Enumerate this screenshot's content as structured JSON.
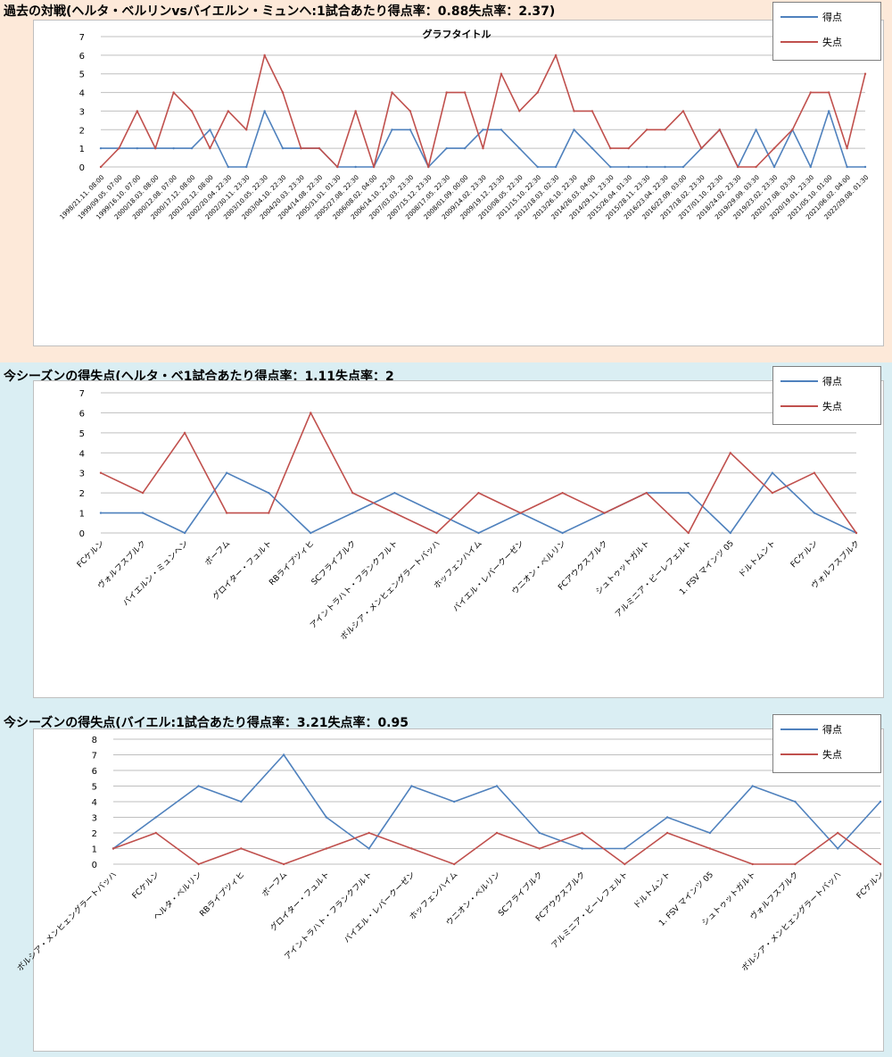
{
  "colors": {
    "scored": "#4f81bd",
    "conceded": "#c0504d",
    "grid": "#bfbfbf",
    "panel_top": "#fde9d9",
    "panel_bottom": "#daeef3"
  },
  "charts": [
    {
      "header": "過去の対戦(ヘルタ・ベルリンvsバイエルン・ミュンヘ:1試合あたり得点率：0.88失点率：2.37)",
      "title": "グラフタイトル"
    },
    {
      "header": "今シーズンの得失点(ヘルタ・ベ1試合あたり得点率：1.11失点率：2",
      "title": ""
    },
    {
      "header": "今シーズンの得失点(バイエル:1試合あたり得点率：3.21失点率：0.95",
      "title": ""
    }
  ],
  "chart_data": [
    {
      "type": "line",
      "title": "グラフタイトル",
      "legend_position": "top-right",
      "grid": true,
      "ylim": [
        0,
        7
      ],
      "categories": [
        "1998/21.11. 08:00",
        "1999/09.05. 07:00",
        "1999/16.10. 07:00",
        "2000/18.03. 08:00",
        "2000/12.08. 07:00",
        "2000/17.12. 08:00",
        "2001/02.12. 08:00",
        "2002/20.04. 22:30",
        "2002/30.11. 23:30",
        "2003/10.05. 22:30",
        "2003/04.10. 22:30",
        "2004/20.03. 23:30",
        "2004/14.08. 22:30",
        "2005/31.01. 01:30",
        "2005/27.08. 22:30",
        "2006/08.02. 04:00",
        "2006/14.10. 22:30",
        "2007/03.03. 23:30",
        "2007/15.12. 23:30",
        "2008/17.05. 22:30",
        "2008/01.09. 00:00",
        "2009/14.02. 23:30",
        "2009/19.12. 23:30",
        "2010/08.05. 22:30",
        "2011/15.10. 22:30",
        "2012/18.03. 02:30",
        "2013/26.10. 22:30",
        "2014/26.03. 04:00",
        "2014/29.11. 23:30",
        "2015/26.04. 01:30",
        "2015/28.11. 23:30",
        "2016/23.04. 22:30",
        "2016/22.09. 03:00",
        "2017/18.02. 23:30",
        "2017/01.10. 22:30",
        "2018/24.02. 23:30",
        "2019/29.09. 03:30",
        "2019/23.02. 23:30",
        "2020/17.08. 03:30",
        "2020/19.01. 23:30",
        "2021/05.10. 01:00",
        "2021/06.02. 04:00",
        "2022/29.08. 01:30"
      ],
      "series": [
        {
          "name": "得点",
          "values": [
            1,
            1,
            1,
            1,
            1,
            1,
            2,
            0,
            0,
            3,
            1,
            1,
            1,
            0,
            0,
            0,
            2,
            2,
            0,
            1,
            1,
            2,
            2,
            1,
            0,
            0,
            2,
            1,
            0,
            0,
            0,
            0,
            0,
            1,
            2,
            0,
            2,
            0,
            2,
            0,
            3,
            0,
            0
          ]
        },
        {
          "name": "失点",
          "values": [
            0,
            1,
            3,
            1,
            4,
            3,
            1,
            3,
            2,
            6,
            4,
            1,
            1,
            0,
            3,
            0,
            4,
            3,
            0,
            4,
            4,
            1,
            5,
            3,
            4,
            6,
            3,
            3,
            1,
            1,
            2,
            2,
            3,
            1,
            2,
            0,
            0,
            1,
            2,
            4,
            4,
            1,
            5
          ]
        }
      ]
    },
    {
      "type": "line",
      "legend_position": "top-right",
      "grid": true,
      "ylim": [
        0,
        7
      ],
      "categories": [
        "FCケルン",
        "ヴォルフスブルク",
        "バイエルン・ミュンヘン",
        "ボーフム",
        "グロイター・フュルト",
        "RBライプツィヒ",
        "SCフライブルク",
        "アイントラハト・フランクフルト",
        "ボルシア・メンヒェングラートバッハ",
        "ホッフェンハイム",
        "バイエル・レバークーゼン",
        "ウニオン・ベルリン",
        "FCアウクスブルク",
        "シュトゥットガルト",
        "アルミニア・ビーレフェルト",
        "1. FSV マインツ 05",
        "ドルトムント",
        "FCケルン",
        "ヴォルフスブルク"
      ],
      "series": [
        {
          "name": "得点",
          "values": [
            1,
            1,
            0,
            3,
            2,
            0,
            1,
            2,
            1,
            0,
            1,
            0,
            1,
            2,
            2,
            0,
            3,
            1,
            0
          ]
        },
        {
          "name": "失点",
          "values": [
            3,
            2,
            5,
            1,
            1,
            6,
            2,
            1,
            0,
            2,
            1,
            2,
            1,
            2,
            0,
            4,
            2,
            3,
            0
          ]
        }
      ]
    },
    {
      "type": "line",
      "legend_position": "top-right",
      "grid": true,
      "ylim": [
        0,
        8
      ],
      "categories": [
        "ボルシア・メンヒェングラートバッハ",
        "FCケルン",
        "ヘルタ・ベルリン",
        "RBライプツィヒ",
        "ボーフム",
        "グロイター・フュルト",
        "アイントラハト・フランクフルト",
        "バイエル・レバークーゼン",
        "ホッフェンハイム",
        "ウニオン・ベルリン",
        "SCフライブルク",
        "FCアウクスブルク",
        "アルミニア・ビーレフェルト",
        "ドルトムント",
        "1. FSV マインツ 05",
        "シュトゥットガルト",
        "ヴォルフスブルク",
        "ボルシア・メンヒェングラートバッハ",
        "FCケルン"
      ],
      "series": [
        {
          "name": "得点",
          "values": [
            1,
            3,
            5,
            4,
            7,
            3,
            1,
            5,
            4,
            5,
            2,
            1,
            1,
            3,
            2,
            5,
            4,
            1,
            4
          ]
        },
        {
          "name": "失点",
          "values": [
            1,
            2,
            0,
            1,
            0,
            1,
            2,
            1,
            0,
            2,
            1,
            2,
            0,
            2,
            1,
            0,
            0,
            2,
            0
          ]
        }
      ]
    }
  ]
}
